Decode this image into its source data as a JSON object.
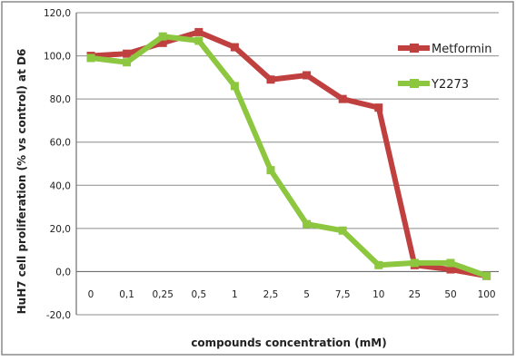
{
  "chart_data": {
    "type": "line",
    "title": "",
    "xlabel": "compounds  concentration (mM)",
    "ylabel": "HuH7 cell proliferation (% vs control) at D6",
    "categories": [
      "0",
      "0,1",
      "0,25",
      "0,5",
      "1",
      "2,5",
      "5",
      "7,5",
      "10",
      "25",
      "50",
      "100"
    ],
    "ylim": [
      -20,
      120
    ],
    "yticks": [
      "-20,0",
      "0,0",
      "20,0",
      "40,0",
      "60,0",
      "80,0",
      "100,0",
      "120,0"
    ],
    "ytick_values": [
      -20,
      0,
      20,
      40,
      60,
      80,
      100,
      120
    ],
    "grid": "horizontal",
    "legend_position": "right",
    "series": [
      {
        "name": "Metformin",
        "color": "#c0403f",
        "values": [
          100,
          101,
          106,
          111,
          104,
          89,
          91,
          80,
          76,
          3,
          1,
          -2
        ]
      },
      {
        "name": "Y2273",
        "color": "#8dc63f",
        "values": [
          99,
          97,
          109,
          107,
          86,
          47,
          22,
          19,
          3,
          4,
          4,
          -2
        ]
      }
    ]
  }
}
